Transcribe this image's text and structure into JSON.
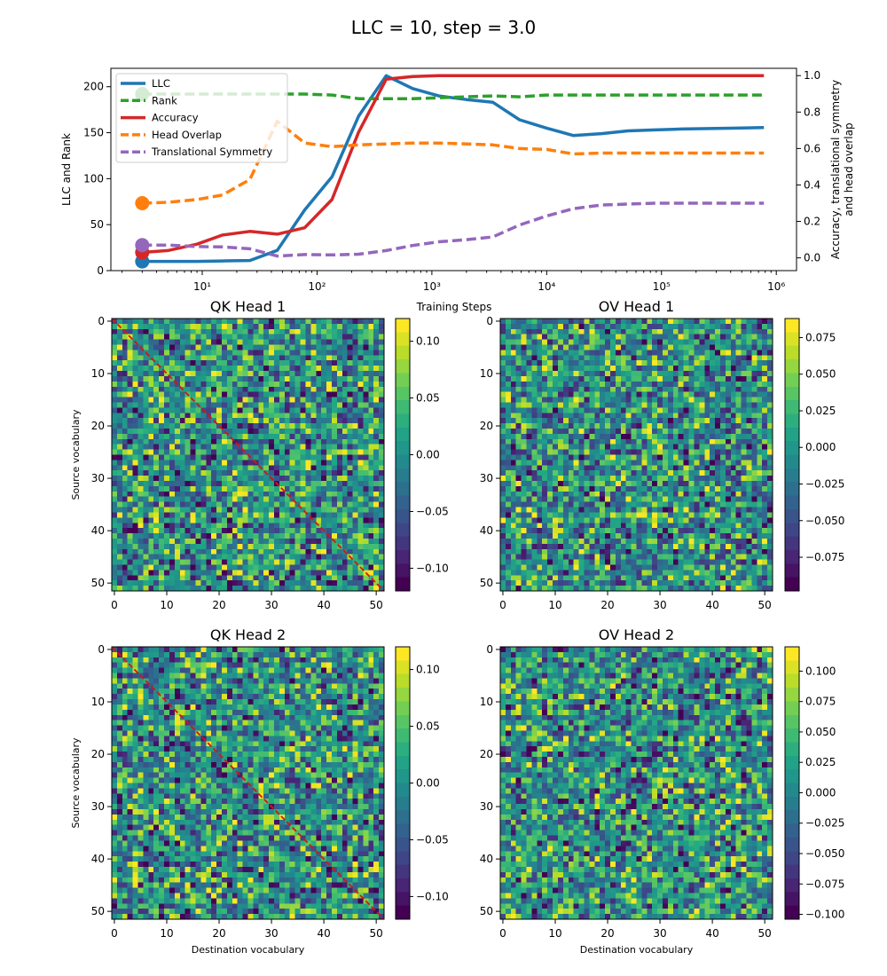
{
  "figure": {
    "suptitle": "LLC = 10, step = 3.0"
  },
  "colors": {
    "llc": "#1f77b4",
    "rank": "#2ca02c",
    "accuracy": "#d62728",
    "overlap": "#ff7f0e",
    "symmetry": "#9467bd",
    "diagonal": "#e01010"
  },
  "chart_data": [
    {
      "type": "line",
      "title": "",
      "xlabel": "Training Steps",
      "ylabel": "LLC and Rank",
      "y2label_line1": "Accuracy, translational symmetry",
      "y2label_line2": "and head overlap",
      "xscale": "log",
      "xlim": [
        1.6,
        1500000
      ],
      "ylim": [
        0,
        220
      ],
      "y2lim": [
        -0.07,
        1.04
      ],
      "xticks": [
        10,
        100,
        1000,
        10000,
        100000,
        1000000
      ],
      "xtick_labels": [
        "10¹",
        "10²",
        "10³",
        "10⁴",
        "10⁵",
        "10⁶"
      ],
      "yticks": [
        0,
        50,
        100,
        150,
        200
      ],
      "y2ticks": [
        0.0,
        0.2,
        0.4,
        0.6,
        0.8,
        1.0
      ],
      "legend": [
        "LLC",
        "Rank",
        "Accuracy",
        "Head Overlap",
        "Translational Symmetry"
      ],
      "legend_position": "top-left",
      "series": [
        {
          "name": "LLC",
          "axis": "left",
          "style": "solid",
          "x": [
            3,
            5,
            9,
            15,
            26,
            45,
            78,
            135,
            230,
            400,
            680,
            1150,
            2000,
            3400,
            5800,
            10000,
            17000,
            30000,
            51000,
            88000,
            150000,
            260000,
            450000,
            780000
          ],
          "values": [
            10,
            10,
            10,
            10.5,
            11,
            22,
            66,
            102,
            168,
            212,
            198,
            190,
            186,
            183,
            164,
            155,
            147,
            149,
            152,
            153,
            154,
            154.5,
            155,
            155.5
          ]
        },
        {
          "name": "Rank",
          "axis": "left",
          "style": "dashed",
          "x": [
            3,
            5,
            9,
            15,
            26,
            45,
            78,
            135,
            230,
            400,
            680,
            1150,
            2000,
            3400,
            5800,
            10000,
            17000,
            30000,
            51000,
            88000,
            150000,
            260000,
            450000,
            780000
          ],
          "values": [
            192,
            192,
            192,
            192,
            192,
            192,
            192,
            191,
            187,
            187,
            187,
            188,
            189,
            190,
            189,
            191,
            191,
            191,
            191,
            191,
            191,
            191,
            191,
            191
          ]
        },
        {
          "name": "Accuracy",
          "axis": "right",
          "style": "solid",
          "x": [
            3,
            5,
            9,
            15,
            26,
            45,
            78,
            135,
            230,
            400,
            680,
            1150,
            2000,
            3400,
            5800,
            10000,
            17000,
            30000,
            51000,
            88000,
            150000,
            260000,
            450000,
            780000
          ],
          "values": [
            0.03,
            0.04,
            0.075,
            0.125,
            0.145,
            0.13,
            0.165,
            0.32,
            0.69,
            0.98,
            0.995,
            1.0,
            1.0,
            1.0,
            1.0,
            1.0,
            1.0,
            1.0,
            1.0,
            1.0,
            1.0,
            1.0,
            1.0,
            1.0
          ]
        },
        {
          "name": "Head Overlap",
          "axis": "right",
          "style": "dashed",
          "x": [
            3,
            5,
            9,
            15,
            26,
            45,
            78,
            135,
            230,
            400,
            680,
            1150,
            2000,
            3400,
            5800,
            10000,
            17000,
            30000,
            51000,
            88000,
            150000,
            260000,
            450000,
            780000
          ],
          "values": [
            0.3,
            0.305,
            0.32,
            0.345,
            0.43,
            0.75,
            0.63,
            0.61,
            0.62,
            0.625,
            0.63,
            0.63,
            0.625,
            0.62,
            0.6,
            0.595,
            0.57,
            0.575,
            0.575,
            0.575,
            0.575,
            0.575,
            0.575,
            0.575
          ]
        },
        {
          "name": "Translational Symmetry",
          "axis": "right",
          "style": "dashed",
          "x": [
            3,
            5,
            9,
            15,
            26,
            45,
            78,
            135,
            230,
            400,
            680,
            1150,
            2000,
            3400,
            5800,
            10000,
            17000,
            30000,
            51000,
            88000,
            150000,
            260000,
            450000,
            780000
          ],
          "values": [
            0.07,
            0.07,
            0.062,
            0.06,
            0.05,
            0.01,
            0.018,
            0.016,
            0.02,
            0.04,
            0.068,
            0.088,
            0.1,
            0.115,
            0.18,
            0.23,
            0.27,
            0.29,
            0.295,
            0.3,
            0.3,
            0.3,
            0.3,
            0.3
          ]
        }
      ],
      "markers": [
        {
          "series": "LLC",
          "x": 3,
          "value": 10
        },
        {
          "series": "Rank",
          "x": 3,
          "value": 192
        },
        {
          "series": "Accuracy",
          "x": 3,
          "value": 0.03
        },
        {
          "series": "Head Overlap",
          "x": 3,
          "value": 0.3
        },
        {
          "series": "Translational Symmetry",
          "x": 3,
          "value": 0.07
        }
      ]
    },
    {
      "type": "heatmap",
      "title": "QK Head 1",
      "xlabel": "",
      "ylabel": "Source vocabulary",
      "size": 52,
      "seed": 11,
      "diagonal": true,
      "ticks": [
        0,
        10,
        20,
        30,
        40,
        50
      ],
      "clim": [
        -0.12,
        0.12
      ],
      "colorbar_ticks": [
        0.1,
        0.05,
        0.0,
        -0.05,
        -0.1
      ],
      "colorbar_labels": [
        "0.10",
        "0.05",
        "0.00",
        "−0.05",
        "−0.10"
      ]
    },
    {
      "type": "heatmap",
      "title": "OV Head 1",
      "xlabel": "",
      "ylabel": "",
      "size": 52,
      "seed": 23,
      "diagonal": false,
      "ticks": [
        0,
        10,
        20,
        30,
        40,
        50
      ],
      "clim": [
        -0.098,
        0.088
      ],
      "colorbar_ticks": [
        0.075,
        0.05,
        0.025,
        0.0,
        -0.025,
        -0.05,
        -0.075
      ],
      "colorbar_labels": [
        "0.075",
        "0.050",
        "0.025",
        "0.000",
        "−0.025",
        "−0.050",
        "−0.075"
      ]
    },
    {
      "type": "heatmap",
      "title": "QK Head 2",
      "xlabel": "Destination vocabulary",
      "ylabel": "Source vocabulary",
      "size": 52,
      "seed": 37,
      "diagonal": true,
      "ticks": [
        0,
        10,
        20,
        30,
        40,
        50
      ],
      "clim": [
        -0.12,
        0.12
      ],
      "colorbar_ticks": [
        0.1,
        0.05,
        0.0,
        -0.05,
        -0.1
      ],
      "colorbar_labels": [
        "0.10",
        "0.05",
        "0.00",
        "−0.05",
        "−0.10"
      ]
    },
    {
      "type": "heatmap",
      "title": "OV Head 2",
      "xlabel": "Destination vocabulary",
      "ylabel": "",
      "size": 52,
      "seed": 53,
      "diagonal": false,
      "ticks": [
        0,
        10,
        20,
        30,
        40,
        50
      ],
      "clim": [
        -0.104,
        0.12
      ],
      "colorbar_ticks": [
        0.1,
        0.075,
        0.05,
        0.025,
        0.0,
        -0.025,
        -0.05,
        -0.075,
        -0.1
      ],
      "colorbar_labels": [
        "0.100",
        "0.075",
        "0.050",
        "0.025",
        "0.000",
        "−0.025",
        "−0.050",
        "−0.075",
        "−0.100"
      ]
    }
  ]
}
